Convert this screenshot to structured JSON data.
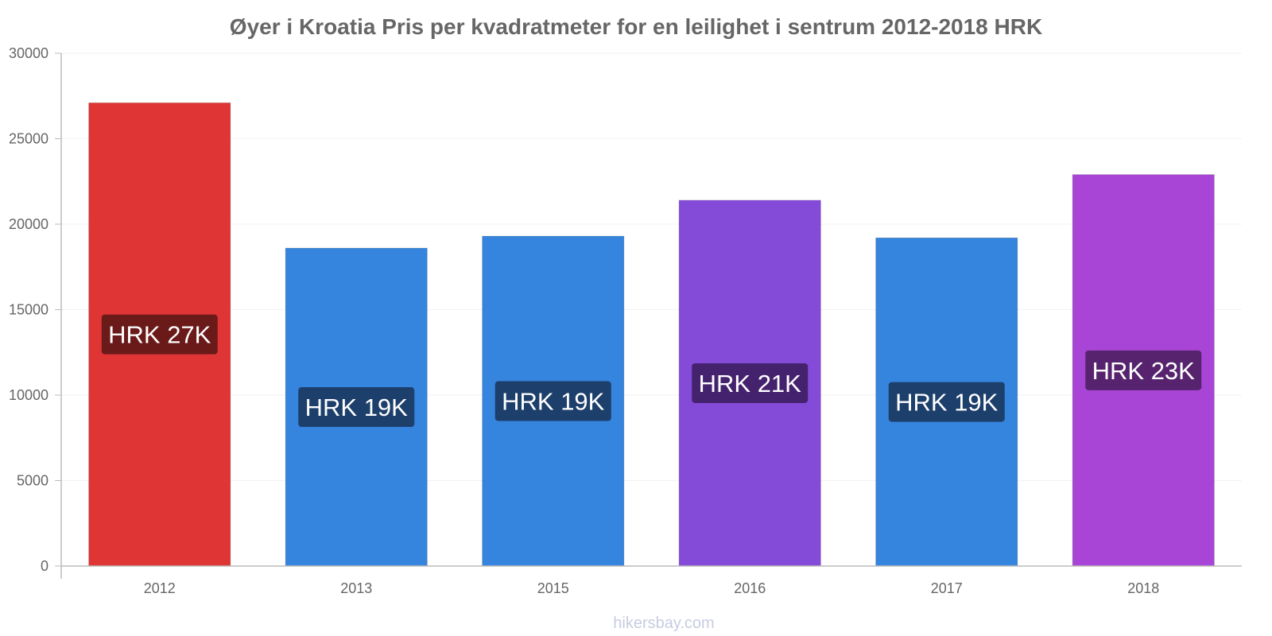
{
  "chart_data": {
    "type": "bar",
    "title": "Øyer i Kroatia Pris per kvadratmeter for en leilighet i sentrum 2012-2018 HRK",
    "xlabel": "",
    "ylabel": "",
    "categories": [
      "2012",
      "2013",
      "2015",
      "2016",
      "2017",
      "2018"
    ],
    "values": [
      27100,
      18600,
      19300,
      21400,
      19200,
      22900
    ],
    "data_labels": [
      "HRK 27K",
      "HRK 19K",
      "HRK 19K",
      "HRK 21K",
      "HRK 19K",
      "HRK 23K"
    ],
    "bar_colors": [
      "#e03535",
      "#3584de",
      "#3584de",
      "#844bd9",
      "#3584de",
      "#a945d6"
    ],
    "label_colors": [
      "#6b1a1a",
      "#1d3f6b",
      "#1d3f6b",
      "#45226e",
      "#1d3f6b",
      "#57236e"
    ],
    "ylim": [
      0,
      30000
    ],
    "yticks": [
      "0",
      "5000",
      "10000",
      "15000",
      "20000",
      "25000",
      "30000"
    ],
    "grid": true,
    "legend": "none"
  },
  "watermark": "hikersbay.com"
}
